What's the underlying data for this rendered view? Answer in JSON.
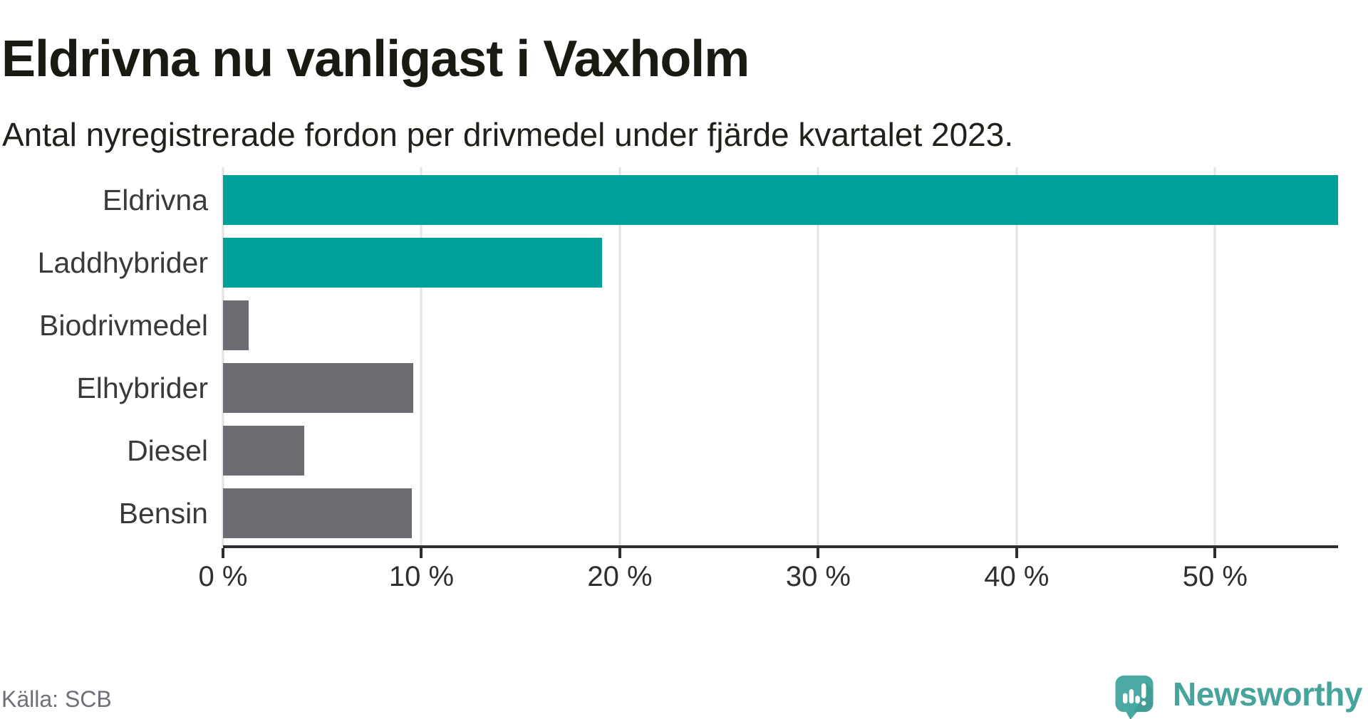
{
  "header": {
    "title": "Eldrivna nu vanligast i Vaxholm",
    "subtitle": "Antal nyregistrerade fordon per drivmedel under fjärde kvartalet 2023."
  },
  "chart_data": {
    "type": "bar",
    "orientation": "horizontal",
    "title": "Eldrivna nu vanligast i Vaxholm",
    "subtitle": "Antal nyregistrerade fordon per drivmedel under fjärde kvartalet 2023.",
    "categories": [
      "Eldrivna",
      "Laddhybrider",
      "Biodrivmedel",
      "Elhybrider",
      "Diesel",
      "Bensin"
    ],
    "values": [
      56.2,
      19.1,
      1.3,
      9.6,
      4.1,
      9.5
    ],
    "unit": "%",
    "highlighted": [
      true,
      true,
      false,
      false,
      false,
      false
    ],
    "xlim": [
      0,
      56.2
    ],
    "xticks": [
      0,
      10,
      20,
      30,
      40,
      50
    ],
    "xtick_labels": [
      "0 %",
      "10 %",
      "20 %",
      "30 %",
      "40 %",
      "50 %"
    ],
    "grid": "vertical-gridlines",
    "legend": false
  },
  "colors": {
    "highlight_bar": "#00a09a",
    "default_bar": "#6c6c72",
    "gridline": "#e3e3e3",
    "axis_line": "#2e2e2e",
    "brand_teal": "#46a49d",
    "brand_icon_fill": "#4ba9a3",
    "brand_icon_shade": "#3e948e"
  },
  "footer": {
    "source": "Källa: SCB",
    "brand_name": "Newsworthy"
  }
}
